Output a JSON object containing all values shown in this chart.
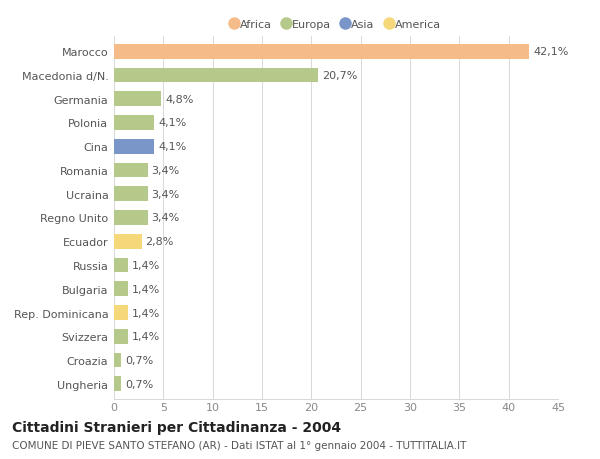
{
  "countries": [
    "Marocco",
    "Macedonia d/N.",
    "Germania",
    "Polonia",
    "Cina",
    "Romania",
    "Ucraina",
    "Regno Unito",
    "Ecuador",
    "Russia",
    "Bulgaria",
    "Rep. Dominicana",
    "Svizzera",
    "Croazia",
    "Ungheria"
  ],
  "values": [
    42.1,
    20.7,
    4.8,
    4.1,
    4.1,
    3.4,
    3.4,
    3.4,
    2.8,
    1.4,
    1.4,
    1.4,
    1.4,
    0.7,
    0.7
  ],
  "colors": [
    "#f5bc8a",
    "#b5c98a",
    "#b5c98a",
    "#b5c98a",
    "#7a96c8",
    "#b5c98a",
    "#b5c98a",
    "#b5c98a",
    "#f5d87a",
    "#b5c98a",
    "#b5c98a",
    "#f5d87a",
    "#b5c98a",
    "#b5c98a",
    "#b5c98a"
  ],
  "labels": [
    "42,1%",
    "20,7%",
    "4,8%",
    "4,1%",
    "4,1%",
    "3,4%",
    "3,4%",
    "3,4%",
    "2,8%",
    "1,4%",
    "1,4%",
    "1,4%",
    "1,4%",
    "0,7%",
    "0,7%"
  ],
  "legend": [
    {
      "label": "Africa",
      "color": "#f5bc8a"
    },
    {
      "label": "Europa",
      "color": "#b5c98a"
    },
    {
      "label": "Asia",
      "color": "#7a96c8"
    },
    {
      "label": "America",
      "color": "#f5d87a"
    }
  ],
  "xlim": [
    0,
    45
  ],
  "xticks": [
    0,
    5,
    10,
    15,
    20,
    25,
    30,
    35,
    40,
    45
  ],
  "title": "Cittadini Stranieri per Cittadinanza - 2004",
  "subtitle": "COMUNE DI PIEVE SANTO STEFANO (AR) - Dati ISTAT al 1° gennaio 2004 - TUTTITALIA.IT",
  "bg_color": "#ffffff",
  "grid_color": "#d8d8d8",
  "bar_height": 0.62,
  "label_fontsize": 8.0,
  "axis_fontsize": 8.0,
  "title_fontsize": 10,
  "subtitle_fontsize": 7.5
}
